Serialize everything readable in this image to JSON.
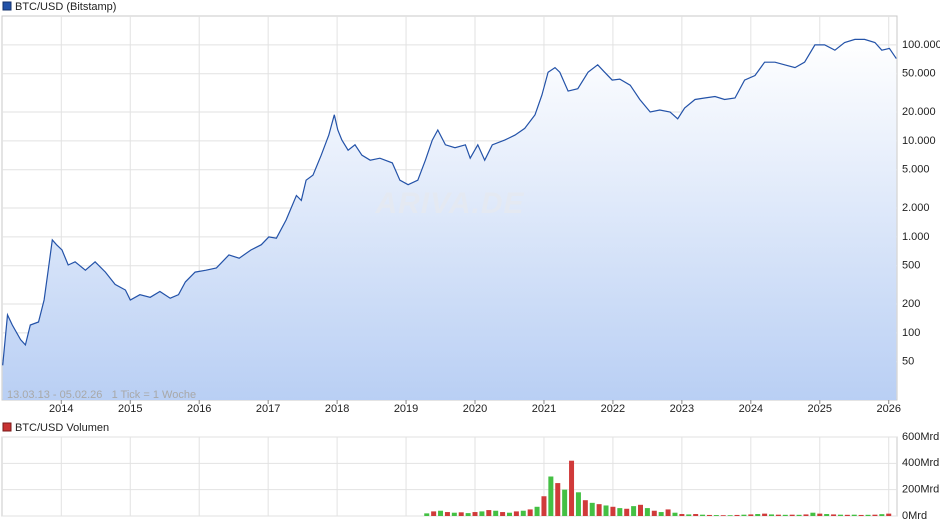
{
  "chart_data": [
    {
      "type": "line",
      "title": "BTC/USD (Bitstamp)",
      "annotation": "13.03.13 - 05.02.26   1 Tick = 1 Woche",
      "watermark": "ARIVA.DE",
      "color": "#2352a8",
      "log": true,
      "grid": true,
      "x": [
        2013.15,
        2013.22,
        2013.29,
        2013.41,
        2013.48,
        2013.55,
        2013.67,
        2013.75,
        2013.81,
        2013.87,
        2013.93,
        2014.01,
        2014.1,
        2014.2,
        2014.35,
        2014.49,
        2014.64,
        2014.78,
        2014.93,
        2015.0,
        2015.14,
        2015.29,
        2015.43,
        2015.58,
        2015.7,
        2015.8,
        2015.94,
        2016.1,
        2016.25,
        2016.43,
        2016.58,
        2016.75,
        2016.9,
        2017.01,
        2017.12,
        2017.26,
        2017.41,
        2017.48,
        2017.55,
        2017.65,
        2017.77,
        2017.88,
        2017.96,
        2018.01,
        2018.07,
        2018.16,
        2018.26,
        2018.36,
        2018.48,
        2018.62,
        2018.8,
        2018.91,
        2019.03,
        2019.17,
        2019.28,
        2019.38,
        2019.46,
        2019.57,
        2019.71,
        2019.86,
        2019.93,
        2020.04,
        2020.14,
        2020.25,
        2020.43,
        2020.58,
        2020.72,
        2020.87,
        2020.97,
        2021.06,
        2021.16,
        2021.23,
        2021.35,
        2021.49,
        2021.64,
        2021.78,
        2021.88,
        2021.99,
        2022.1,
        2022.25,
        2022.39,
        2022.54,
        2022.68,
        2022.83,
        2022.94,
        2023.04,
        2023.19,
        2023.33,
        2023.48,
        2023.62,
        2023.77,
        2023.91,
        2024.06,
        2024.2,
        2024.35,
        2024.49,
        2024.64,
        2024.78,
        2024.93,
        2025.07,
        2025.22,
        2025.36,
        2025.51,
        2025.65,
        2025.8,
        2025.9,
        2026.01,
        2026.11
      ],
      "values": [
        46,
        154,
        121,
        85,
        75,
        121,
        130,
        220,
        450,
        930,
        830,
        730,
        510,
        550,
        450,
        550,
        430,
        320,
        280,
        220,
        250,
        235,
        270,
        230,
        250,
        340,
        430,
        450,
        475,
        650,
        600,
        730,
        830,
        1000,
        970,
        1500,
        2700,
        2400,
        3900,
        4400,
        7100,
        11500,
        18700,
        13000,
        10200,
        8000,
        9100,
        7100,
        6300,
        6600,
        5900,
        3900,
        3500,
        3900,
        6300,
        10200,
        13000,
        9100,
        8500,
        9100,
        6600,
        9100,
        6300,
        9100,
        10200,
        11500,
        13500,
        18700,
        30000,
        52000,
        58000,
        52000,
        33000,
        35000,
        52000,
        62000,
        52000,
        43000,
        44000,
        38000,
        27000,
        20000,
        21000,
        20000,
        17000,
        22000,
        27000,
        28000,
        29000,
        27000,
        28000,
        43000,
        48000,
        66000,
        66000,
        62000,
        58000,
        66000,
        100000,
        100000,
        88000,
        106000,
        114000,
        114000,
        106000,
        88000,
        92000,
        72000
      ],
      "xlim": [
        2013.14,
        2026.12
      ],
      "xticks": [
        2014,
        2015,
        2016,
        2017,
        2018,
        2019,
        2020,
        2021,
        2022,
        2023,
        2024,
        2025,
        2026
      ],
      "ylim": [
        20,
        200000
      ],
      "yticks": [
        50,
        100,
        200,
        500,
        {
          "value": 1000,
          "label": "1.000"
        },
        {
          "value": 2000,
          "label": "2.000"
        },
        {
          "value": 5000,
          "label": "5.000"
        },
        {
          "value": 10000,
          "label": "10.000"
        },
        {
          "value": 20000,
          "label": "20.000"
        },
        {
          "value": 50000,
          "label": "50.000"
        },
        {
          "value": 100000,
          "label": "100.000"
        }
      ]
    },
    {
      "type": "bar",
      "title": "BTC/USD Volumen",
      "color": "#c83232",
      "colors": [
        "#44c044",
        "#d03a3a"
      ],
      "grid": true,
      "x": [
        2019.3,
        2019.4,
        2019.5,
        2019.6,
        2019.7,
        2019.8,
        2019.9,
        2020.0,
        2020.1,
        2020.2,
        2020.3,
        2020.4,
        2020.5,
        2020.6,
        2020.7,
        2020.8,
        2020.9,
        2021.0,
        2021.1,
        2021.2,
        2021.3,
        2021.4,
        2021.5,
        2021.6,
        2021.7,
        2021.8,
        2021.9,
        2022.0,
        2022.1,
        2022.2,
        2022.3,
        2022.4,
        2022.5,
        2022.6,
        2022.7,
        2022.8,
        2022.9,
        2023.0,
        2023.1,
        2023.2,
        2023.3,
        2023.4,
        2023.5,
        2023.6,
        2023.7,
        2023.8,
        2023.9,
        2024.0,
        2024.1,
        2024.2,
        2024.3,
        2024.4,
        2024.5,
        2024.6,
        2024.7,
        2024.8,
        2024.9,
        2025.0,
        2025.1,
        2025.2,
        2025.3,
        2025.4,
        2025.5,
        2025.6,
        2025.7,
        2025.8,
        2025.9,
        2026.0
      ],
      "values": [
        20,
        35,
        40,
        30,
        25,
        28,
        22,
        30,
        35,
        45,
        40,
        30,
        25,
        35,
        40,
        50,
        70,
        150,
        300,
        250,
        200,
        420,
        180,
        120,
        100,
        90,
        80,
        70,
        60,
        55,
        75,
        85,
        60,
        40,
        30,
        50,
        25,
        15,
        12,
        15,
        10,
        8,
        7,
        6,
        6,
        8,
        10,
        12,
        15,
        18,
        12,
        10,
        9,
        10,
        9,
        12,
        25,
        18,
        15,
        12,
        10,
        9,
        10,
        8,
        9,
        10,
        14,
        18
      ],
      "xlim": [
        2013.14,
        2026.12
      ],
      "xticks": [
        2014,
        2015,
        2016,
        2017,
        2018,
        2019,
        2020,
        2021,
        2022,
        2023,
        2024,
        2025,
        2026
      ],
      "ylim": [
        0,
        600
      ],
      "yticks": [
        {
          "value": 0,
          "label": "0Mrd"
        },
        {
          "value": 200,
          "label": "200Mrd"
        },
        {
          "value": 400,
          "label": "400Mrd"
        },
        {
          "value": 600,
          "label": "600Mrd"
        }
      ]
    }
  ]
}
